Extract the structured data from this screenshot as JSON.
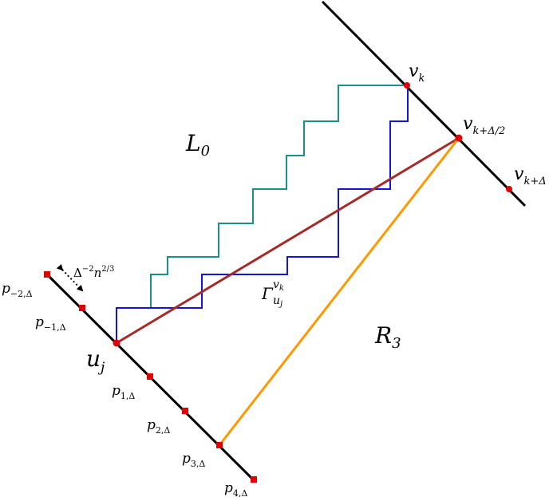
{
  "diagram": {
    "labels": {
      "vk": "v",
      "vk_sub": "k",
      "vkhalf": "v",
      "vkhalf_sub": "k+Δ/2",
      "vkd": "v",
      "vkd_sub": "k+Δ",
      "L0": "L",
      "L0_sub": "0",
      "R3": "R",
      "R3_sub": "3",
      "uj": "u",
      "uj_sub": "j",
      "gamma": "Γ",
      "gamma_sup": "v",
      "gamma_sup_sub": "k",
      "gamma_sub": "u",
      "gamma_sub_sub": "j",
      "delta": "Δ",
      "delta_exp": "−2",
      "delta_n": "n",
      "delta_n_exp": "2/3",
      "p": [
        {
          "base": "p",
          "sub": "−2,Δ"
        },
        {
          "base": "p",
          "sub": "−1,Δ"
        },
        {
          "base": "p",
          "sub": "1,Δ"
        },
        {
          "base": "p",
          "sub": "2,Δ"
        },
        {
          "base": "p",
          "sub": "3,Δ"
        },
        {
          "base": "p",
          "sub": "4,Δ"
        }
      ]
    },
    "colors": {
      "axis_lines": "#000000",
      "points": "#e30000",
      "teal_path": "#17918a",
      "blue_path": "#1414e0",
      "brown_segment": "#a52a2a",
      "orange_segment": "#ff9800"
    }
  }
}
